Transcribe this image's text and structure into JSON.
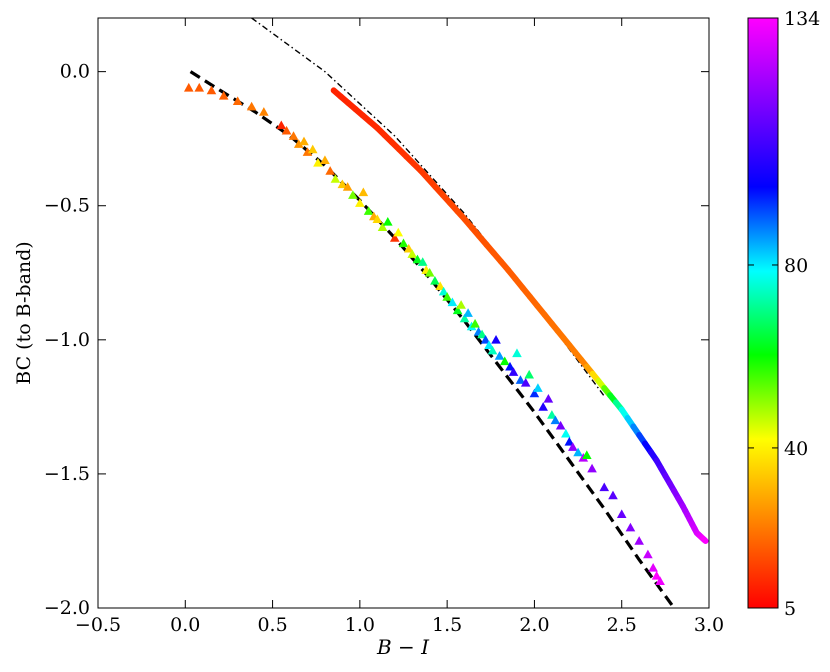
{
  "chart_data": {
    "type": "scatter",
    "xlabel": "B − I",
    "ylabel": "BC (to B-band)",
    "xlim": [
      -0.5,
      3.0
    ],
    "ylim": [
      -2.0,
      0.2
    ],
    "xticks": [
      -0.5,
      0.0,
      0.5,
      1.0,
      1.5,
      2.0,
      2.5,
      3.0
    ],
    "yticks": [
      0.0,
      -0.5,
      -1.0,
      -1.5,
      -2.0
    ],
    "xtick_labels": [
      "−0.5",
      "0.0",
      "0.5",
      "1.0",
      "1.5",
      "2.0",
      "2.5",
      "3.0"
    ],
    "ytick_labels": [
      "0.0",
      "−0.5",
      "−1.0",
      "−1.5",
      "−2.0"
    ],
    "grid": false,
    "colorbar": {
      "min": 5,
      "max": 134,
      "ticks": [
        5,
        40,
        80,
        134
      ],
      "tick_labels": [
        "5",
        "40",
        "80",
        "134"
      ],
      "colormap": [
        "#ff0000",
        "#ff8000",
        "#ffff00",
        "#00ff00",
        "#00ffff",
        "#0000ff",
        "#8000ff",
        "#ff00ff"
      ]
    },
    "dashed_fit": {
      "color": "#000000",
      "x": [
        0.03,
        0.2,
        0.4,
        0.6,
        0.8,
        1.0,
        1.2,
        1.4,
        1.6,
        1.8,
        2.0,
        2.2,
        2.4,
        2.6,
        2.8
      ],
      "y": [
        0.0,
        -0.07,
        -0.15,
        -0.24,
        -0.35,
        -0.48,
        -0.62,
        -0.77,
        -0.93,
        -1.1,
        -1.27,
        -1.45,
        -1.63,
        -1.82,
        -2.0
      ]
    },
    "dashdot_line": {
      "color": "#000000",
      "x": [
        0.38,
        0.8,
        1.2,
        1.6,
        2.0,
        2.4
      ],
      "y": [
        0.2,
        0.0,
        -0.24,
        -0.53,
        -0.86,
        -1.21
      ]
    },
    "thick_curve": {
      "x": [
        0.85,
        1.1,
        1.35,
        1.6,
        1.85,
        2.1,
        2.3,
        2.5,
        2.7,
        2.85,
        2.93,
        2.98
      ],
      "y": [
        -0.07,
        -0.21,
        -0.37,
        -0.55,
        -0.74,
        -0.94,
        -1.1,
        -1.26,
        -1.45,
        -1.62,
        -1.72,
        -1.75
      ],
      "color_value": [
        10,
        11,
        13,
        16,
        18,
        21,
        24,
        75,
        105,
        120,
        128,
        134
      ]
    },
    "triangles": {
      "x": [
        0.02,
        0.08,
        0.15,
        0.22,
        0.3,
        0.38,
        0.45,
        0.55,
        0.58,
        0.62,
        0.65,
        0.68,
        0.7,
        0.73,
        0.76,
        0.8,
        0.83,
        0.86,
        0.9,
        0.93,
        0.96,
        1.0,
        1.02,
        1.05,
        1.08,
        1.1,
        1.13,
        1.16,
        1.2,
        1.22,
        1.25,
        1.28,
        1.3,
        1.33,
        1.36,
        1.38,
        1.4,
        1.43,
        1.46,
        1.48,
        1.5,
        1.53,
        1.56,
        1.58,
        1.6,
        1.62,
        1.64,
        1.66,
        1.68,
        1.7,
        1.72,
        1.74,
        1.76,
        1.78,
        1.8,
        1.83,
        1.86,
        1.88,
        1.9,
        1.92,
        1.95,
        1.97,
        2.0,
        2.02,
        2.05,
        2.08,
        2.1,
        2.12,
        2.15,
        2.18,
        2.2,
        2.22,
        2.25,
        2.28,
        2.3,
        2.33,
        2.4,
        2.45,
        2.5,
        2.55,
        2.6,
        2.65,
        2.68,
        2.7,
        2.72
      ],
      "y": [
        -0.06,
        -0.06,
        -0.07,
        -0.09,
        -0.11,
        -0.13,
        -0.15,
        -0.2,
        -0.22,
        -0.24,
        -0.27,
        -0.26,
        -0.3,
        -0.29,
        -0.34,
        -0.33,
        -0.37,
        -0.4,
        -0.42,
        -0.43,
        -0.46,
        -0.49,
        -0.45,
        -0.52,
        -0.54,
        -0.55,
        -0.58,
        -0.56,
        -0.62,
        -0.6,
        -0.64,
        -0.66,
        -0.68,
        -0.7,
        -0.71,
        -0.74,
        -0.75,
        -0.78,
        -0.8,
        -0.82,
        -0.84,
        -0.86,
        -0.89,
        -0.87,
        -0.92,
        -0.9,
        -0.95,
        -0.94,
        -0.97,
        -0.98,
        -1.0,
        -1.02,
        -1.04,
        -1.0,
        -1.06,
        -1.08,
        -1.1,
        -1.12,
        -1.05,
        -1.15,
        -1.16,
        -1.13,
        -1.2,
        -1.18,
        -1.25,
        -1.22,
        -1.28,
        -1.3,
        -1.32,
        -1.35,
        -1.38,
        -1.4,
        -1.42,
        -1.44,
        -1.43,
        -1.48,
        -1.55,
        -1.58,
        -1.65,
        -1.7,
        -1.75,
        -1.8,
        -1.85,
        -1.88,
        -1.9
      ],
      "color_value": [
        18,
        18,
        18,
        19,
        20,
        22,
        24,
        10,
        18,
        22,
        26,
        30,
        22,
        34,
        40,
        30,
        20,
        46,
        34,
        28,
        52,
        40,
        32,
        56,
        30,
        36,
        48,
        60,
        12,
        42,
        58,
        35,
        46,
        62,
        70,
        40,
        52,
        66,
        38,
        76,
        56,
        80,
        62,
        48,
        72,
        84,
        78,
        56,
        88,
        70,
        92,
        80,
        74,
        100,
        86,
        60,
        96,
        104,
        76,
        90,
        108,
        68,
        94,
        82,
        102,
        112,
        72,
        88,
        114,
        78,
        96,
        118,
        84,
        124,
        60,
        118,
        108,
        110,
        112,
        116,
        120,
        126,
        130,
        134,
        132
      ]
    }
  }
}
